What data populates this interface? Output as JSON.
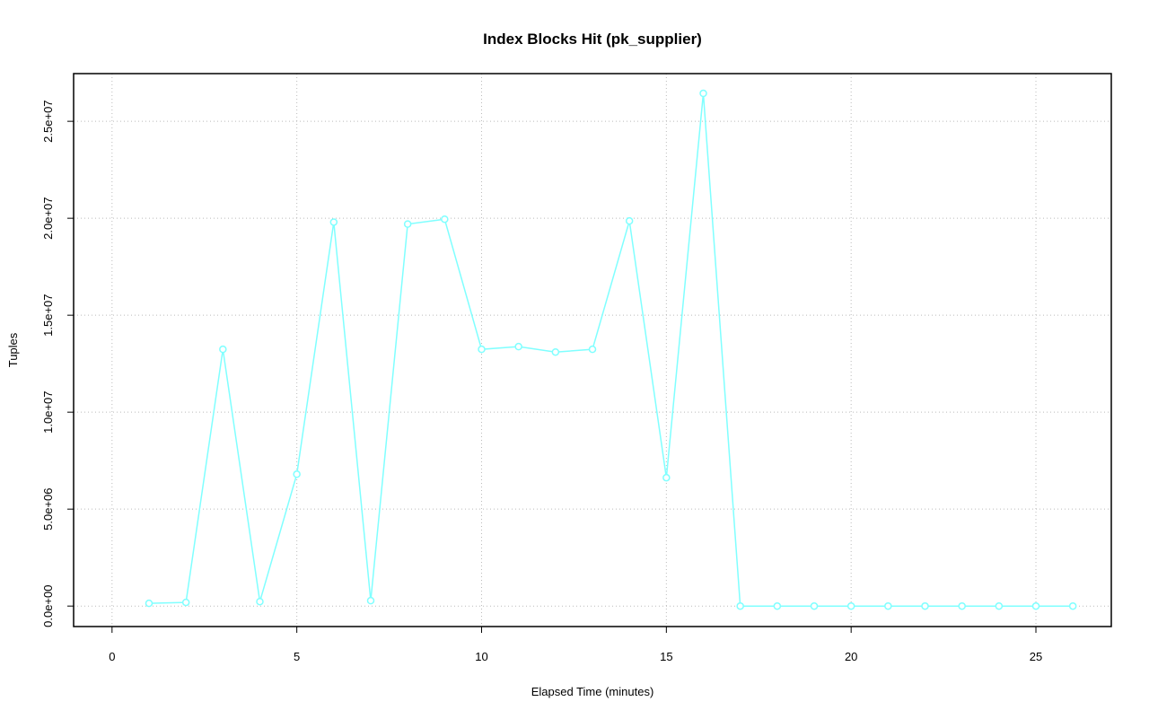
{
  "chart_data": {
    "type": "line",
    "title": "Index Blocks Hit (pk_supplier)",
    "xlabel": "Elapsed Time (minutes)",
    "ylabel": "Tuples",
    "x": [
      1,
      2,
      3,
      4,
      5,
      6,
      7,
      8,
      9,
      10,
      11,
      12,
      13,
      14,
      15,
      16,
      17,
      18,
      19,
      20,
      21,
      22,
      23,
      24,
      25,
      26
    ],
    "values": [
      140000,
      190000,
      13240000,
      230000,
      6800000,
      19800000,
      280000,
      19700000,
      19950000,
      13240000,
      13380000,
      13100000,
      13240000,
      19860000,
      6620000,
      26440000,
      0,
      0,
      0,
      0,
      0,
      0,
      0,
      0,
      0,
      0
    ],
    "color": "#80ffff",
    "xlim": [
      -1.04,
      27.04
    ],
    "ylim": [
      -1056000,
      27460000
    ],
    "xticks": [
      0,
      5,
      10,
      15,
      20,
      25
    ],
    "yticks": [
      {
        "value": 0,
        "label": "0.0e+00"
      },
      {
        "value": 5000000,
        "label": "5.0e+06"
      },
      {
        "value": 10000000,
        "label": "1.0e+07"
      },
      {
        "value": 15000000,
        "label": "1.5e+07"
      },
      {
        "value": 20000000,
        "label": "2.0e+07"
      },
      {
        "value": 25000000,
        "label": "2.5e+07"
      }
    ],
    "grid": true
  }
}
